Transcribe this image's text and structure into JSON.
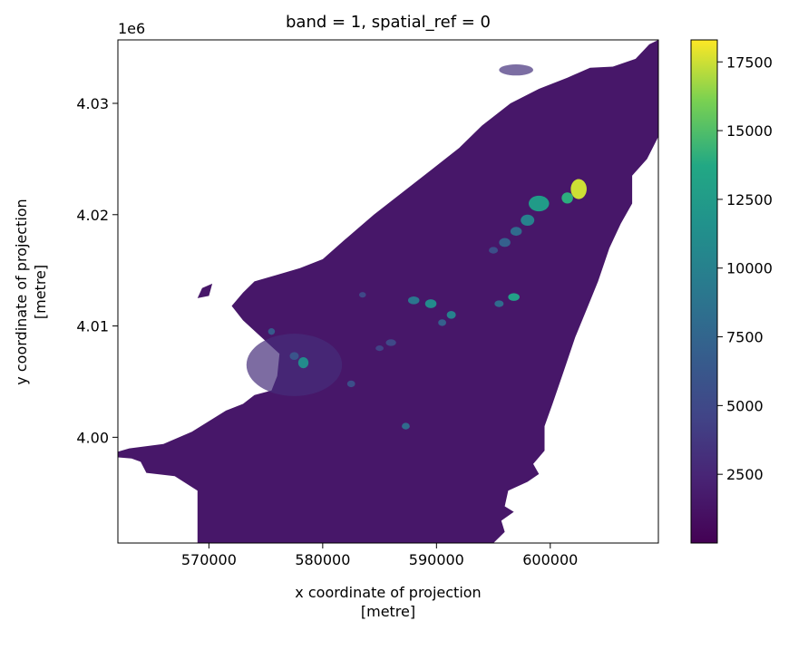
{
  "chart_data": {
    "type": "heatmap",
    "title": "band = 1, spatial_ref = 0",
    "xlabel": "x coordinate of projection\n[metre]",
    "ylabel": "y coordinate of projection\n[metre]",
    "y_offset_label": "1e6",
    "xlim": [
      562000,
      609500
    ],
    "ylim": [
      3990500,
      4035700
    ],
    "x_ticks": [
      {
        "value": 570000,
        "label": "570000"
      },
      {
        "value": 580000,
        "label": "580000"
      },
      {
        "value": 590000,
        "label": "590000"
      },
      {
        "value": 600000,
        "label": "600000"
      }
    ],
    "y_ticks": [
      {
        "value": 4000000,
        "label": "4.00"
      },
      {
        "value": 4010000,
        "label": "4.01"
      },
      {
        "value": 4020000,
        "label": "4.02"
      },
      {
        "value": 4030000,
        "label": "4.03"
      }
    ],
    "colorbar": {
      "colormap": "viridis",
      "vmin": 0,
      "vmax": 18300,
      "ticks": [
        {
          "value": 2500,
          "label": "2500"
        },
        {
          "value": 5000,
          "label": "5000"
        },
        {
          "value": 7500,
          "label": "7500"
        },
        {
          "value": 10000,
          "label": "10000"
        },
        {
          "value": 12500,
          "label": "12500"
        },
        {
          "value": 15000,
          "label": "15000"
        },
        {
          "value": 17500,
          "label": "17500"
        }
      ]
    },
    "background_value": 1500,
    "land_outline": [
      [
        562000,
        3998700
      ],
      [
        563000,
        3999000
      ],
      [
        566000,
        3999400
      ],
      [
        568500,
        4000500
      ],
      [
        571500,
        4002400
      ],
      [
        573000,
        4003000
      ],
      [
        574000,
        4003800
      ],
      [
        575500,
        4004200
      ],
      [
        576000,
        4005500
      ],
      [
        576200,
        4007500
      ],
      [
        573000,
        4010500
      ],
      [
        572000,
        4011800
      ],
      [
        573000,
        4013000
      ],
      [
        574000,
        4014000
      ],
      [
        576000,
        4014600
      ],
      [
        578000,
        4015200
      ],
      [
        580000,
        4016000
      ],
      [
        582000,
        4017800
      ],
      [
        584500,
        4020000
      ],
      [
        587000,
        4022000
      ],
      [
        589500,
        4024000
      ],
      [
        592000,
        4026000
      ],
      [
        594000,
        4028000
      ],
      [
        596500,
        4030000
      ],
      [
        599000,
        4031300
      ],
      [
        601500,
        4032300
      ],
      [
        603500,
        4033200
      ],
      [
        605500,
        4033300
      ],
      [
        607500,
        4034000
      ],
      [
        608700,
        4035300
      ],
      [
        609500,
        4035700
      ],
      [
        609500,
        4027000
      ],
      [
        608500,
        4025000
      ],
      [
        607200,
        4023500
      ],
      [
        607200,
        4021000
      ],
      [
        606200,
        4019200
      ],
      [
        605200,
        4017000
      ],
      [
        604200,
        4014000
      ],
      [
        603200,
        4011500
      ],
      [
        602200,
        4009000
      ],
      [
        601200,
        4006000
      ],
      [
        600200,
        4003000
      ],
      [
        599500,
        4001000
      ],
      [
        599500,
        3998800
      ],
      [
        598500,
        3997600
      ],
      [
        599000,
        3996700
      ],
      [
        598000,
        3996000
      ],
      [
        596300,
        3995200
      ],
      [
        596000,
        3993800
      ],
      [
        596800,
        3993300
      ],
      [
        595700,
        3992500
      ],
      [
        596000,
        3991500
      ],
      [
        595000,
        3990500
      ],
      [
        569000,
        3990500
      ],
      [
        569000,
        3995200
      ],
      [
        567000,
        3996500
      ],
      [
        564500,
        3996800
      ],
      [
        564000,
        3997800
      ],
      [
        563200,
        3998100
      ],
      [
        562000,
        3998200
      ]
    ],
    "islet": [
      [
        569000,
        4012500
      ],
      [
        569400,
        4013400
      ],
      [
        570300,
        4013800
      ],
      [
        570000,
        4012700
      ]
    ],
    "hotspots": [
      {
        "x": 602500,
        "y": 4022300,
        "rx": 700,
        "ry": 900,
        "value": 17500
      },
      {
        "x": 601500,
        "y": 4021500,
        "rx": 500,
        "ry": 500,
        "value": 14000
      },
      {
        "x": 599000,
        "y": 4021000,
        "rx": 900,
        "ry": 700,
        "value": 12500
      },
      {
        "x": 598000,
        "y": 4019500,
        "rx": 600,
        "ry": 500,
        "value": 10000
      },
      {
        "x": 597000,
        "y": 4018500,
        "rx": 500,
        "ry": 400,
        "value": 8000
      },
      {
        "x": 596000,
        "y": 4017500,
        "rx": 500,
        "ry": 400,
        "value": 7000
      },
      {
        "x": 595000,
        "y": 4016800,
        "rx": 400,
        "ry": 300,
        "value": 5500
      },
      {
        "x": 596800,
        "y": 4012600,
        "rx": 500,
        "ry": 350,
        "value": 13000
      },
      {
        "x": 595500,
        "y": 4012000,
        "rx": 400,
        "ry": 300,
        "value": 8000
      },
      {
        "x": 591300,
        "y": 4011000,
        "rx": 400,
        "ry": 350,
        "value": 10000
      },
      {
        "x": 589500,
        "y": 4012000,
        "rx": 500,
        "ry": 400,
        "value": 11000
      },
      {
        "x": 588000,
        "y": 4012300,
        "rx": 500,
        "ry": 350,
        "value": 9000
      },
      {
        "x": 590500,
        "y": 4010300,
        "rx": 350,
        "ry": 300,
        "value": 7000
      },
      {
        "x": 578300,
        "y": 4006700,
        "rx": 450,
        "ry": 500,
        "value": 11000
      },
      {
        "x": 577500,
        "y": 4007300,
        "rx": 400,
        "ry": 350,
        "value": 6000
      },
      {
        "x": 575500,
        "y": 4009500,
        "rx": 300,
        "ry": 300,
        "value": 6500
      },
      {
        "x": 586000,
        "y": 4008500,
        "rx": 450,
        "ry": 300,
        "value": 5000
      },
      {
        "x": 585000,
        "y": 4008000,
        "rx": 350,
        "ry": 250,
        "value": 4500
      },
      {
        "x": 582500,
        "y": 4004800,
        "rx": 350,
        "ry": 300,
        "value": 5500
      },
      {
        "x": 587300,
        "y": 4001000,
        "rx": 350,
        "ry": 300,
        "value": 8000
      },
      {
        "x": 583500,
        "y": 4012800,
        "rx": 300,
        "ry": 250,
        "value": 5000
      }
    ],
    "bright_zones": [
      {
        "x": 577500,
        "y": 4006500,
        "rx": 4200,
        "ry": 2800,
        "value": 3000
      },
      {
        "x": 597000,
        "y": 4033000,
        "rx": 1500,
        "ry": 500,
        "value": 3200
      }
    ]
  }
}
